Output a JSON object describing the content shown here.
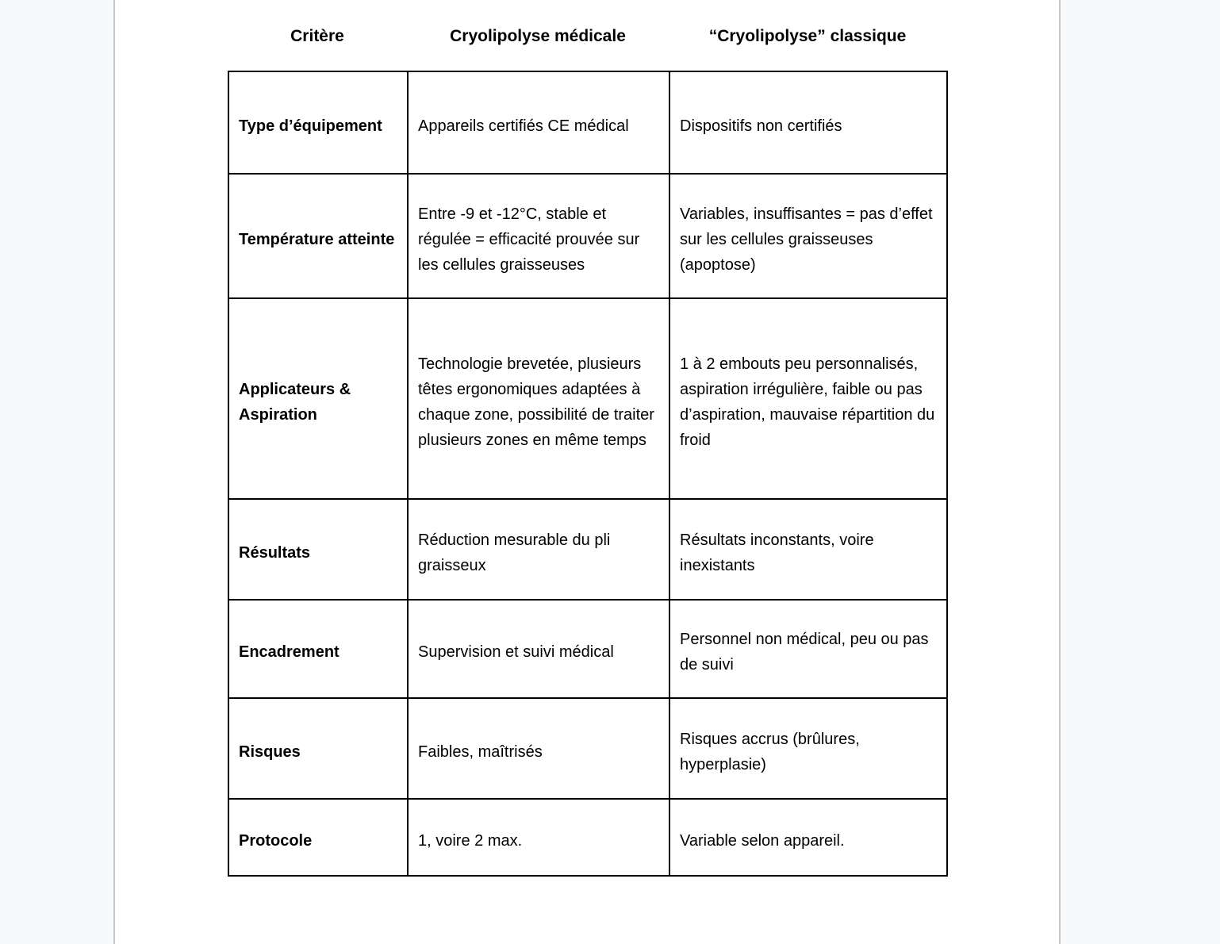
{
  "colors": {
    "canvas_background": "#f8f9fa",
    "canvas_divider": "#c7c7c7",
    "page_background": "#ffffff",
    "table_border": "#000000",
    "text": "#000000"
  },
  "document": {
    "columns": {
      "criterion": "Critère",
      "medical": "Cryolipolyse médicale",
      "classic": "“Cryolipolyse” classique"
    },
    "rows": [
      {
        "criterion": "Type d’équipement",
        "medical": "Appareils certifiés CE médical",
        "classic": "Dispositifs non certifiés"
      },
      {
        "criterion": "Température atteinte",
        "medical": "Entre -9 et -12°C, stable et régulée = efficacité prouvée sur les cellules graisseuses",
        "classic": "Variables, insuffisantes = pas d’effet sur les cellules graisseuses (apoptose)"
      },
      {
        "criterion": "Applicateurs & Aspiration",
        "medical": "Technologie brevetée, plusieurs têtes ergonomiques adaptées à chaque zone, possibilité de traiter plusieurs zones en même temps",
        "classic": "1 à 2 embouts peu personnalisés, aspiration irrégulière, faible ou pas d’aspiration, mauvaise répartition du froid"
      },
      {
        "criterion": "Résultats",
        "medical": "Réduction mesurable du pli graisseux",
        "classic": "Résultats inconstants, voire inexistants"
      },
      {
        "criterion": "Encadrement",
        "medical": "Supervision et suivi médical",
        "classic": "Personnel non médical, peu ou pas de suivi"
      },
      {
        "criterion": "Risques",
        "medical": "Faibles, maîtrisés",
        "classic": "Risques accrus (brûlures, hyperplasie)"
      },
      {
        "criterion": "Protocole",
        "medical": "1, voire 2 max.",
        "classic": "Variable selon appareil."
      }
    ]
  }
}
